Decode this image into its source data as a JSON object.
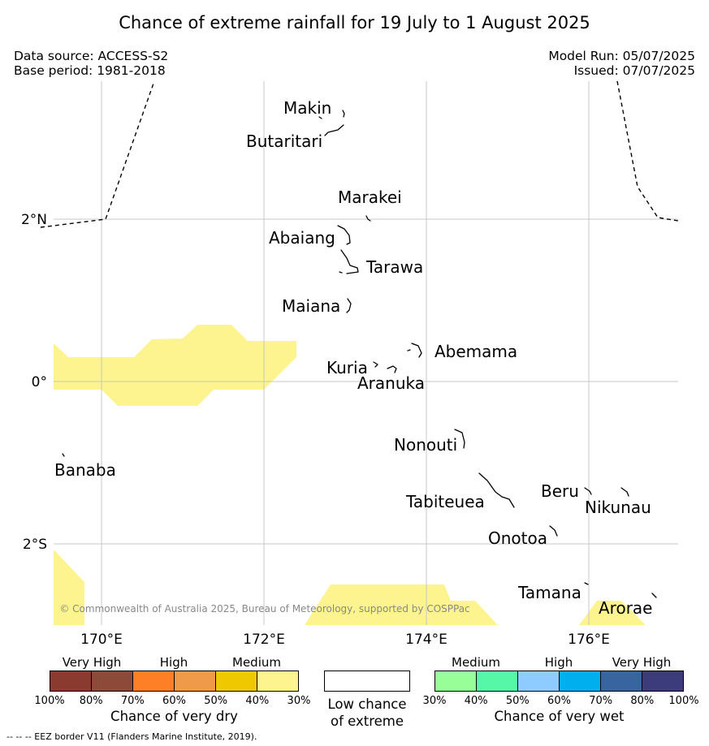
{
  "title": "Chance of extreme rainfall for 19 July to 1 August 2025",
  "data_source": "Data source: ACCESS-S2",
  "base_period": "Base period: 1981-2018",
  "model_run": "Model Run: 05/07/2025",
  "issued": "Issued: 07/07/2025",
  "copyright": "© Commonwealth of Australia 2025, Bureau of Meteorology, supported by COSPPac",
  "footnote": "--  --  -- EEZ border V11 (Flanders Marine Institute, 2019).",
  "map": {
    "lon_range": [
      169.2,
      177.2
    ],
    "lat_range": [
      -3.0,
      3.5
    ],
    "gridlines": true,
    "lon_ticks": [
      {
        "value": 170,
        "label": "170°E"
      },
      {
        "value": 172,
        "label": "172°E"
      },
      {
        "value": 174,
        "label": "174°E"
      },
      {
        "value": 176,
        "label": "176°E"
      }
    ],
    "lat_ticks": [
      {
        "value": 2,
        "label": "2°N"
      },
      {
        "value": 0,
        "label": "0°"
      },
      {
        "value": -2,
        "label": "2°S"
      }
    ],
    "places": [
      {
        "name": "Makin"
      },
      {
        "name": "Butaritari"
      },
      {
        "name": "Marakei"
      },
      {
        "name": "Abaiang"
      },
      {
        "name": "Tarawa"
      },
      {
        "name": "Maiana"
      },
      {
        "name": "Abemama"
      },
      {
        "name": "Kuria"
      },
      {
        "name": "Aranuka"
      },
      {
        "name": "Nonouti"
      },
      {
        "name": "Banaba"
      },
      {
        "name": "Beru"
      },
      {
        "name": "Tabiteuea"
      },
      {
        "name": "Nikunau"
      },
      {
        "name": "Onotoa"
      },
      {
        "name": "Tamana"
      },
      {
        "name": "Arorae"
      }
    ],
    "shaded_category": "Medium (30%–40%) chance of very dry",
    "shade_color": "#fdf48f"
  },
  "legend_dry": {
    "title": "Chance of very dry",
    "headers": [
      "Very High",
      "High",
      "Medium"
    ],
    "colors": [
      "#8b3a2f",
      "#8d4a38",
      "#ff7f27",
      "#ee9a48",
      "#f0c800",
      "#fdf48f"
    ],
    "ticks": [
      "100%",
      "80%",
      "70%",
      "60%",
      "50%",
      "40%",
      "30%"
    ]
  },
  "legend_low": {
    "title_line1": "Low chance",
    "title_line2": "of extreme",
    "color": "#ffffff"
  },
  "legend_wet": {
    "title": "Chance of very wet",
    "headers": [
      "Medium",
      "High",
      "Very High"
    ],
    "colors": [
      "#98ff98",
      "#56f7a6",
      "#8ecbff",
      "#00b0ee",
      "#3864a0",
      "#3c3c7c"
    ],
    "ticks": [
      "30%",
      "40%",
      "50%",
      "60%",
      "70%",
      "80%",
      "100%"
    ]
  }
}
